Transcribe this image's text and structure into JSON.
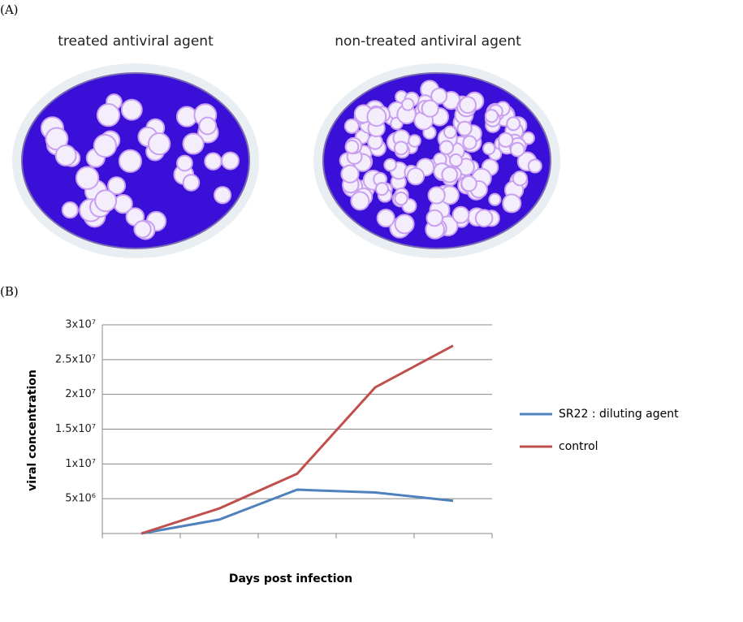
{
  "panel_labels": [
    "(A)",
    "(B)"
  ],
  "images": [
    {
      "caption": "treated antiviral agent"
    },
    {
      "caption": "non-treated antiviral agent"
    }
  ],
  "chart_data": {
    "type": "line",
    "ylabel": "viral  concentration",
    "xlabel": "Days post infection",
    "categories": [
      null,
      null,
      null,
      null,
      null
    ],
    "series": [
      {
        "name": "SR22 : diluting agent",
        "color": "#4f81bd",
        "values": [
          0,
          2000000,
          6300000,
          5900000,
          4700000
        ]
      },
      {
        "name": "control",
        "color": "#c0504d",
        "values": [
          0,
          3600000,
          8600000,
          21000000,
          27000000
        ]
      }
    ],
    "ylim": [
      0,
      30000000
    ],
    "yticks": [
      {
        "value": 5000000,
        "label": "5x10⁶"
      },
      {
        "value": 10000000,
        "label": "1x10⁷"
      },
      {
        "value": 15000000,
        "label": "1.5x10⁷"
      },
      {
        "value": 20000000,
        "label": "2x10⁷"
      },
      {
        "value": 25000000,
        "label": "2.5x10⁷"
      },
      {
        "value": 30000000,
        "label": "3x10⁷"
      }
    ],
    "grid": true
  }
}
